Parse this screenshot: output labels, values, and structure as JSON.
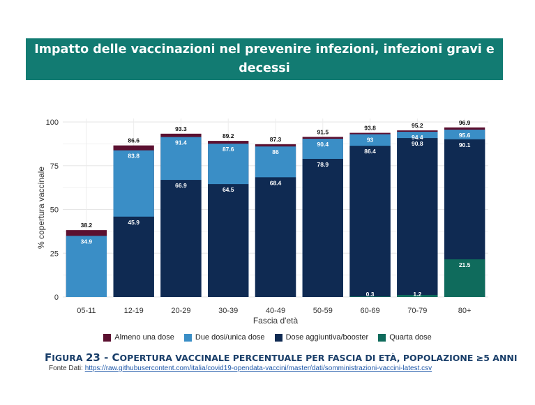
{
  "banner": {
    "line1": "Impatto delle vaccinazioni nel prevenire infezioni, infezioni gravi e",
    "line2": "decessi"
  },
  "colors": {
    "almeno": "#5b1030",
    "due": "#3a8ec6",
    "aggiuntiva": "#0f2a52",
    "quarta": "#0f6b5c",
    "banner": "#127b72"
  },
  "chart_data": {
    "type": "bar",
    "stacked_overlay": true,
    "xlabel": "Fascia d'età",
    "ylabel": "% copertura vaccinale",
    "ylim": [
      0,
      100
    ],
    "yticks": [
      0,
      25,
      50,
      75,
      100
    ],
    "grid": true,
    "legend_position": "bottom",
    "categories": [
      "05-11",
      "12-19",
      "20-29",
      "30-39",
      "40-49",
      "50-59",
      "60-69",
      "70-79",
      "80+"
    ],
    "series": [
      {
        "name": "Almeno una dose",
        "color": "#5b1030",
        "values": [
          38.2,
          86.6,
          93.3,
          89.2,
          87.3,
          91.5,
          93.8,
          95.2,
          96.9
        ]
      },
      {
        "name": "Due dosi/unica dose",
        "color": "#3a8ec6",
        "values": [
          34.9,
          83.8,
          91.4,
          87.6,
          86,
          90.4,
          93,
          94.4,
          95.6
        ]
      },
      {
        "name": "Dose aggiuntiva/booster",
        "color": "#0f2a52",
        "values": [
          null,
          45.9,
          66.9,
          64.5,
          68.4,
          78.9,
          86.4,
          90.8,
          90.1
        ]
      },
      {
        "name": "Quarta dose",
        "color": "#0f6b5c",
        "values": [
          null,
          null,
          null,
          null,
          null,
          null,
          0.3,
          1.2,
          21.5
        ]
      }
    ],
    "value_labels": [
      [
        "38.2",
        "34.9",
        "",
        ""
      ],
      [
        "86.6",
        "83.8",
        "45.9",
        ""
      ],
      [
        "93.3",
        "91.4",
        "66.9",
        ""
      ],
      [
        "89.2",
        "87.6",
        "64.5",
        ""
      ],
      [
        "87.3",
        "86",
        "68.4",
        ""
      ],
      [
        "91.5",
        "90.4",
        "78.9",
        ""
      ],
      [
        "93.8",
        "93",
        "86.4",
        "0.3"
      ],
      [
        "95.2",
        "94.4",
        "90.8",
        "1.2"
      ],
      [
        "96.9",
        "95.6",
        "90.1",
        "21.5"
      ]
    ]
  },
  "caption": {
    "figura": "F",
    "figura_rest": "IGURA",
    "number": "23 - ",
    "c": "C",
    "text": "OPERTURA VACCINALE PERCENTUALE PER FASCIA DI ETÀ, POPOLAZIONE ≥5 ANNI"
  },
  "source": {
    "label": "Fonte Dati: ",
    "url": "https://raw.githubusercontent.com/italia/covid19-opendata-vaccini/master/dati/somministrazioni-vaccini-latest.csv"
  }
}
